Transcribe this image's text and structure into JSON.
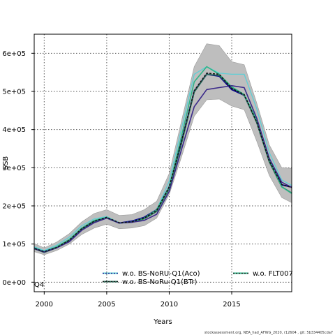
{
  "chart_data": {
    "type": "line",
    "xlabel": "Years",
    "ylabel": "SSB",
    "xlim": [
      1999.2,
      2019.8
    ],
    "ylim": [
      -25000,
      650000
    ],
    "grid": true,
    "x_ticks": [
      2000,
      2005,
      2010,
      2015
    ],
    "x_tick_labels": [
      "2000",
      "2005",
      "2010",
      "2015"
    ],
    "y_ticks": [
      0,
      100000,
      200000,
      300000,
      400000,
      500000,
      600000
    ],
    "y_tick_labels": [
      "0e+00",
      "1e+05",
      "2e+05",
      "3e+05",
      "4e+05",
      "5e+05",
      "6e+05"
    ],
    "x": [
      1999,
      2000,
      2001,
      2002,
      2003,
      2004,
      2005,
      2006,
      2007,
      2008,
      2009,
      2010,
      2011,
      2012,
      2013,
      2014,
      2015,
      2016,
      2017,
      2018,
      2019,
      2020
    ],
    "band": {
      "lower": [
        82000,
        72000,
        83000,
        100000,
        125000,
        142000,
        152000,
        140000,
        142000,
        148000,
        168000,
        230000,
        330000,
        435000,
        478000,
        480000,
        462000,
        452000,
        370000,
        280000,
        222000,
        205000
      ],
      "upper": [
        104000,
        90000,
        105000,
        127000,
        158000,
        180000,
        190000,
        175000,
        177000,
        190000,
        212000,
        285000,
        425000,
        565000,
        625000,
        620000,
        578000,
        570000,
        470000,
        360000,
        300000,
        298000
      ],
      "color": "#bebebe"
    },
    "series": [
      {
        "values": [
          92000,
          80000,
          92000,
          108000,
          140000,
          160000,
          170000,
          155000,
          160000,
          170000,
          190000,
          250000,
          370000,
          500000,
          545000,
          540000,
          505000,
          490000,
          420000,
          318000,
          255000,
          248000
        ],
        "color": "#0d0887",
        "style": "solid",
        "width": 2
      },
      {
        "values": [
          95000,
          83000,
          97000,
          118000,
          148000,
          166000,
          172000,
          156000,
          158000,
          168000,
          190000,
          265000,
          405000,
          545000,
          565000,
          548000,
          545000,
          545000,
          455000,
          340000,
          268000,
          250000
        ],
        "color": "#5fcfd6",
        "style": "solid",
        "width": 1.3
      },
      {
        "values": [
          90000,
          78000,
          90000,
          108000,
          138000,
          158000,
          168000,
          155000,
          157000,
          166000,
          185000,
          245000,
          365000,
          498000,
          545000,
          542000,
          510000,
          490000,
          418000,
          315000,
          250000,
          230000
        ],
        "color": "#2a6f5a",
        "style": "solid",
        "width": 1.6
      },
      {
        "values": [
          92000,
          80000,
          93000,
          112000,
          142000,
          162000,
          170000,
          155000,
          157000,
          168000,
          190000,
          250000,
          385000,
          525000,
          565000,
          545000,
          512000,
          492000,
          425000,
          322000,
          250000,
          228000
        ],
        "color": "#2db487",
        "style": "solid",
        "width": 1.6
      },
      {
        "values": [
          90000,
          79000,
          90000,
          106000,
          136000,
          156000,
          168000,
          155000,
          157000,
          162000,
          178000,
          238000,
          350000,
          460000,
          505000,
          510000,
          515000,
          510000,
          430000,
          325000,
          262000,
          245000
        ],
        "color": "#3b2a8a",
        "style": "solid",
        "width": 1.6
      },
      {
        "values": [
          91000,
          80000,
          91000,
          110000,
          140000,
          160000,
          170000,
          156000,
          158000,
          168000,
          188000,
          250000,
          372000,
          502000,
          548000,
          545000,
          508000,
          492000,
          420000,
          318000,
          256000,
          246000
        ],
        "color": "#111111",
        "style": "dashed",
        "width": 1.5
      }
    ],
    "legend": {
      "placement": "bottom",
      "entries": [
        {
          "name": "w.o. BS-NoRU-Q1(Aco)",
          "color": "#5fcfd6",
          "dash_color": "#0d0887"
        },
        {
          "name": "w.o. BS-NoRu-Q1(BTr)",
          "color": "#2a6f5a",
          "dash_color": "#111111"
        },
        {
          "name": "w.o. FLT007",
          "color": "#2db487",
          "dash_color": "#111111"
        }
      ],
      "partial_label": "Q4"
    }
  },
  "footer": "stockassessment.org, NEA_had_AFWG_2020, r12604 , git: 5b334405cda7"
}
